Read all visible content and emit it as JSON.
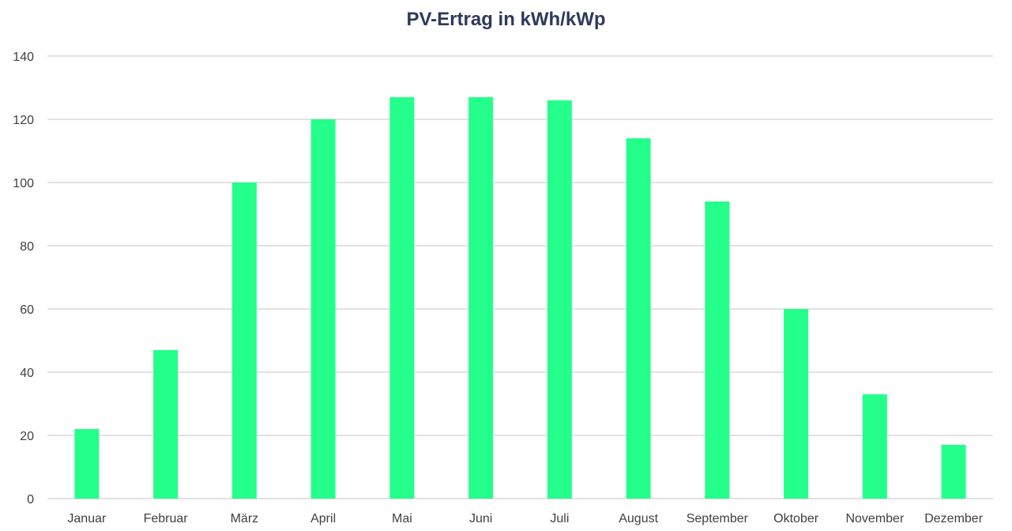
{
  "chart_data": {
    "type": "bar",
    "title": "PV-Ertrag in kWh/kWp",
    "xlabel": "",
    "ylabel": "",
    "categories": [
      "Januar",
      "Februar",
      "März",
      "April",
      "Mai",
      "Juni",
      "Juli",
      "August",
      "September",
      "Oktober",
      "November",
      "Dezember"
    ],
    "values": [
      22,
      47,
      100,
      120,
      127,
      127,
      126,
      114,
      94,
      60,
      33,
      17
    ],
    "ylim": [
      0,
      140
    ],
    "yticks": [
      0,
      20,
      40,
      60,
      80,
      100,
      120,
      140
    ],
    "grid": true,
    "legend": "none",
    "colors": {
      "bar": "#23ff8a",
      "grid": "#d9d9d9",
      "tick_text": "#404040",
      "title": "#2e3a5c"
    }
  }
}
